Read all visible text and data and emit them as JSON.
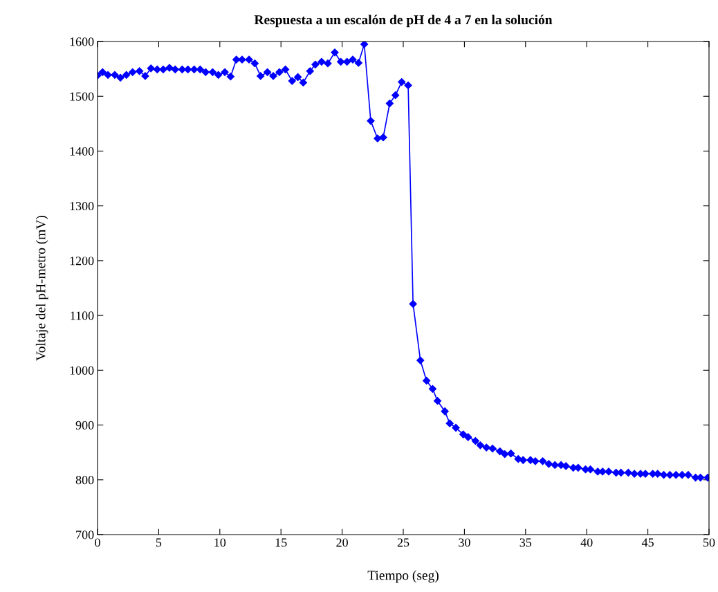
{
  "chart_data": {
    "type": "line",
    "title": "Respuesta a un escalón de pH de 4 a 7 en la solución",
    "xlabel": "Tiempo (seg)",
    "ylabel": "Voltaje del pH-metro (mV)",
    "series": [
      {
        "color": "#0000ff",
        "x": [
          0.0,
          0.41,
          0.85,
          1.41,
          1.87,
          2.36,
          2.87,
          3.43,
          3.9,
          4.37,
          4.88,
          5.37,
          5.88,
          6.35,
          6.92,
          7.39,
          7.9,
          8.39,
          8.84,
          9.41,
          9.88,
          10.41,
          10.88,
          11.35,
          11.82,
          12.39,
          12.86,
          13.33,
          13.89,
          14.37,
          14.87,
          15.36,
          15.91,
          16.38,
          16.82,
          17.38,
          17.81,
          18.32,
          18.83,
          19.4,
          19.89,
          20.4,
          20.87,
          21.34,
          21.81,
          22.34,
          22.9,
          23.36,
          23.89,
          24.36,
          24.87,
          25.4,
          25.8,
          26.4,
          26.9,
          27.4,
          27.8,
          28.4,
          28.8,
          29.3,
          29.9,
          30.3,
          30.9,
          31.3,
          31.8,
          32.3,
          32.9,
          33.3,
          33.8,
          34.4,
          34.8,
          35.4,
          35.8,
          36.4,
          36.9,
          37.4,
          37.9,
          38.3,
          38.9,
          39.3,
          39.9,
          40.3,
          40.9,
          41.3,
          41.8,
          42.4,
          42.8,
          43.4,
          43.9,
          44.4,
          44.8,
          45.4,
          45.8,
          46.3,
          46.8,
          47.3,
          47.8,
          48.3,
          48.9,
          49.3,
          49.9
        ],
        "values": [
          1538,
          1544,
          1539,
          1539,
          1534,
          1539,
          1544,
          1546,
          1537,
          1551,
          1549,
          1549,
          1552,
          1549,
          1549,
          1549,
          1549,
          1549,
          1544,
          1544,
          1539,
          1544,
          1536,
          1567,
          1567,
          1567,
          1560,
          1537,
          1544,
          1537,
          1544,
          1549,
          1528,
          1535,
          1525,
          1546,
          1558,
          1563,
          1560,
          1580,
          1563,
          1563,
          1567,
          1561,
          1595,
          1455,
          1423,
          1425,
          1487,
          1502,
          1526,
          1520,
          1121,
          1018,
          981,
          966,
          944,
          925,
          903,
          895,
          883,
          878,
          871,
          863,
          859,
          857,
          852,
          847,
          848,
          838,
          836,
          836,
          834,
          834,
          829,
          827,
          827,
          825,
          822,
          822,
          819,
          819,
          815,
          815,
          815,
          813,
          813,
          813,
          811,
          811,
          811,
          811,
          811,
          809,
          809,
          809,
          809,
          809,
          804,
          804,
          804
        ]
      }
    ],
    "xlim": [
      0,
      50
    ],
    "xticks": [
      0,
      5,
      10,
      15,
      20,
      25,
      30,
      35,
      40,
      45,
      50
    ],
    "ylim": [
      700,
      1600
    ],
    "yticks": [
      700,
      800,
      900,
      1000,
      1100,
      1200,
      1300,
      1400,
      1500,
      1600
    ],
    "marker": "diamond",
    "line_style": "solid",
    "grid": false,
    "legend": false
  }
}
